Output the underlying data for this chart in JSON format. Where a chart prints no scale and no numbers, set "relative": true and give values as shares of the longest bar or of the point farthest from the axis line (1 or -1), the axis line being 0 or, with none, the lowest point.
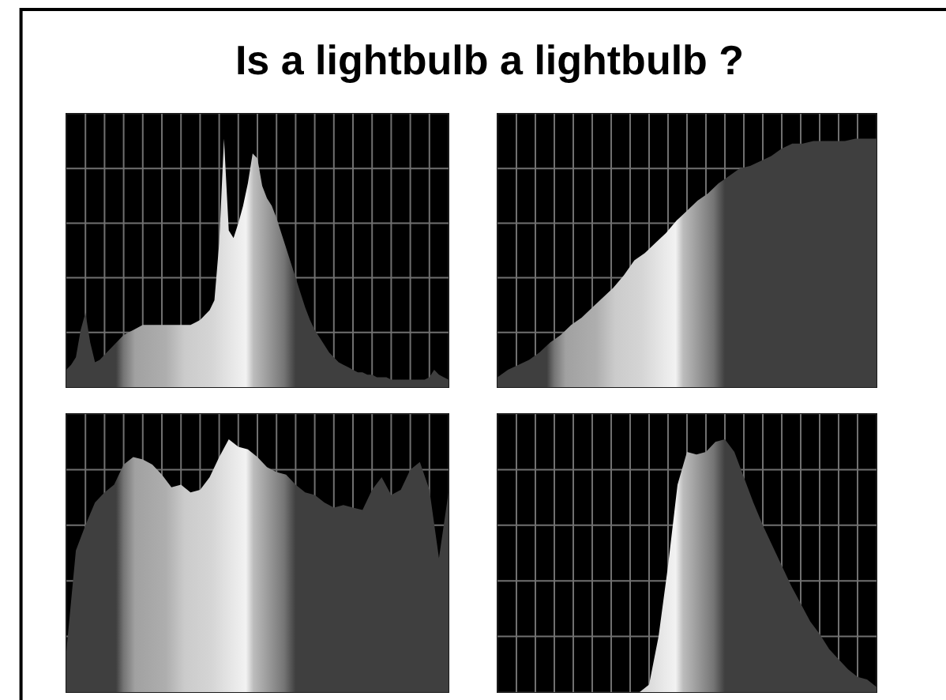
{
  "chart_data": [
    {
      "type": "area",
      "title": "Is a lightbulb a lightbulb ?",
      "relative": true,
      "grid": true,
      "color": "#3f3f3f",
      "categories": [
        null,
        null,
        null,
        null,
        null,
        null,
        null,
        null,
        null,
        null,
        null,
        null,
        null,
        null,
        null,
        null,
        null,
        null,
        null,
        null,
        null,
        null,
        null,
        null,
        null,
        null,
        null,
        null,
        null,
        null,
        null,
        null,
        null,
        null,
        null,
        null,
        null,
        null,
        null,
        null,
        null,
        null,
        null,
        null,
        null,
        null,
        null,
        null,
        null,
        null,
        null,
        null,
        null,
        null,
        null,
        null,
        null,
        null,
        null,
        null,
        null,
        null,
        null,
        null,
        null,
        null,
        null,
        null,
        null,
        null,
        null,
        null,
        null,
        null,
        null,
        null,
        null,
        null,
        null,
        null,
        null
      ],
      "values": [
        0.07,
        0.09,
        0.12,
        0.23,
        0.3,
        0.18,
        0.1,
        0.11,
        0.13,
        0.15,
        0.17,
        0.19,
        0.21,
        0.22,
        0.23,
        0.24,
        0.25,
        0.25,
        0.25,
        0.25,
        0.25,
        0.25,
        0.25,
        0.25,
        0.25,
        0.25,
        0.25,
        0.26,
        0.27,
        0.29,
        0.31,
        0.35,
        0.58,
        1,
        0.63,
        0.6,
        0.66,
        0.73,
        0.82,
        0.94,
        0.92,
        0.81,
        0.76,
        0.73,
        0.68,
        0.62,
        0.56,
        0.5,
        0.44,
        0.38,
        0.32,
        0.27,
        0.23,
        0.2,
        0.17,
        0.14,
        0.12,
        0.1,
        0.09,
        0.08,
        0.07,
        0.06,
        0.06,
        0.05,
        0.05,
        0.04,
        0.04,
        0.04,
        0.03,
        0.03,
        0.03,
        0.03,
        0.03,
        0.03,
        0.03,
        0.03,
        0.04,
        0.07,
        0.05,
        0.04,
        0.03
      ]
    },
    {
      "type": "area",
      "relative": true,
      "grid": true,
      "color": "#3f3f3f",
      "categories": [
        null,
        null,
        null,
        null,
        null,
        null,
        null,
        null,
        null,
        null,
        null,
        null,
        null,
        null,
        null,
        null,
        null,
        null,
        null,
        null,
        null,
        null,
        null,
        null,
        null,
        null,
        null,
        null,
        null,
        null,
        null,
        null,
        null,
        null,
        null,
        null,
        null
      ],
      "values": [
        0.04,
        0.07,
        0.09,
        0.11,
        0.14,
        0.18,
        0.21,
        0.25,
        0.28,
        0.32,
        0.36,
        0.4,
        0.45,
        0.51,
        0.54,
        0.58,
        0.62,
        0.67,
        0.71,
        0.75,
        0.78,
        0.82,
        0.85,
        0.88,
        0.89,
        0.91,
        0.93,
        0.96,
        0.98,
        0.98,
        0.99,
        0.99,
        0.99,
        0.99,
        1,
        1,
        1
      ]
    },
    {
      "type": "area",
      "relative": true,
      "grid": true,
      "color": "#3f3f3f",
      "categories": [
        null,
        null,
        null,
        null,
        null,
        null,
        null,
        null,
        null,
        null,
        null,
        null,
        null,
        null,
        null,
        null,
        null,
        null,
        null,
        null,
        null,
        null,
        null,
        null,
        null,
        null,
        null,
        null,
        null,
        null,
        null,
        null,
        null,
        null,
        null,
        null,
        null,
        null,
        null,
        null,
        null
      ],
      "values": [
        0.16,
        0.56,
        0.66,
        0.75,
        0.79,
        0.82,
        0.9,
        0.93,
        0.92,
        0.9,
        0.86,
        0.81,
        0.82,
        0.79,
        0.8,
        0.85,
        0.93,
        1,
        0.97,
        0.96,
        0.93,
        0.89,
        0.87,
        0.86,
        0.82,
        0.79,
        0.78,
        0.75,
        0.73,
        0.74,
        0.73,
        0.72,
        0.8,
        0.85,
        0.78,
        0.8,
        0.88,
        0.91,
        0.8,
        0.53,
        0.79
      ]
    },
    {
      "type": "area",
      "relative": true,
      "grid": true,
      "color": "#3f3f3f",
      "categories": [
        null,
        null,
        null,
        null,
        null,
        null,
        null,
        null,
        null,
        null,
        null,
        null,
        null,
        null,
        null,
        null,
        null,
        null,
        null,
        null,
        null,
        null,
        null,
        null,
        null,
        null,
        null,
        null,
        null,
        null,
        null,
        null,
        null,
        null,
        null,
        null,
        null,
        null,
        null,
        null,
        null
      ],
      "values": [
        0,
        0,
        0,
        0,
        0,
        0,
        0,
        0,
        0,
        0,
        0,
        0,
        0,
        0,
        0,
        0,
        0.03,
        0.22,
        0.5,
        0.82,
        0.95,
        0.94,
        0.95,
        0.99,
        1,
        0.95,
        0.85,
        0.75,
        0.66,
        0.58,
        0.5,
        0.42,
        0.35,
        0.28,
        0.23,
        0.17,
        0.13,
        0.09,
        0.06,
        0.05,
        0.02
      ]
    }
  ]
}
